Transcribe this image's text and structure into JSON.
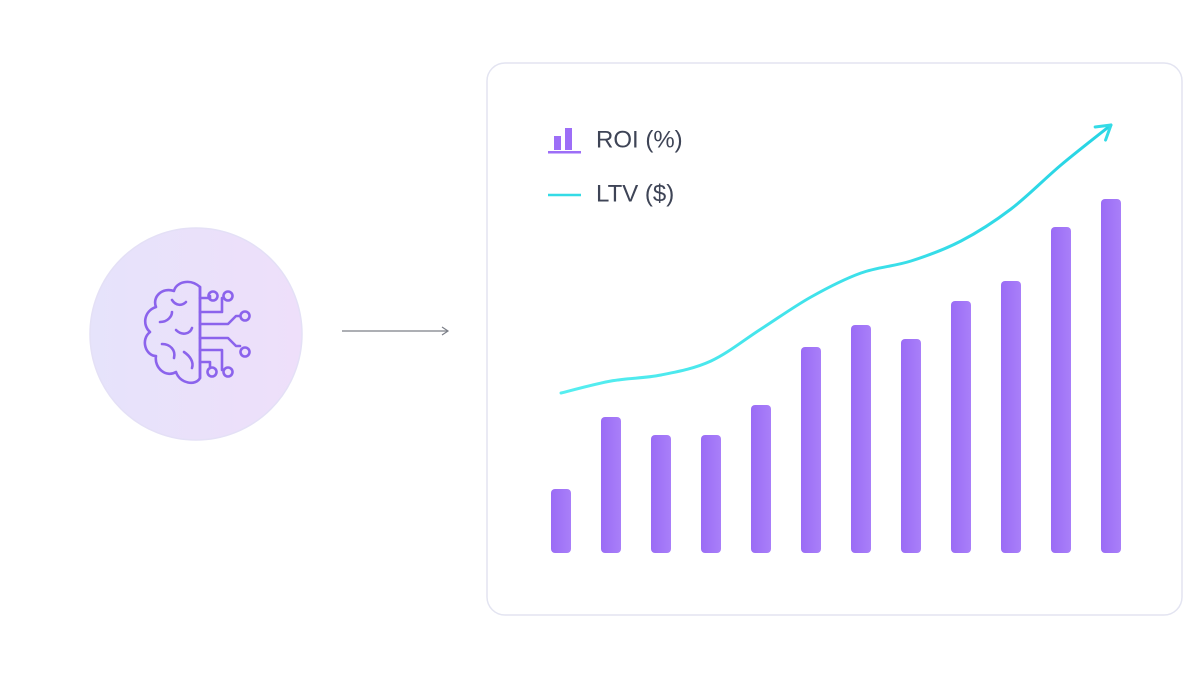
{
  "chart_data": {
    "type": "bar",
    "categories": [
      null,
      null,
      null,
      null,
      null,
      null,
      null,
      null,
      null,
      null,
      null,
      null
    ],
    "series": [
      {
        "name": "ROI (%)",
        "type": "bar",
        "color": "#9d6ef7",
        "values": [
          16,
          34,
          29.5,
          29.5,
          37,
          51.5,
          57,
          53.5,
          63,
          68,
          81.5,
          88.5
        ]
      },
      {
        "name": "LTV ($)",
        "type": "line",
        "color": "#34dbe6",
        "values": [
          40,
          43,
          44.5,
          48,
          56,
          64,
          70,
          73,
          78,
          86,
          97,
          107
        ]
      }
    ],
    "ylim": [
      0,
      110
    ],
    "legend": "top-left"
  }
}
